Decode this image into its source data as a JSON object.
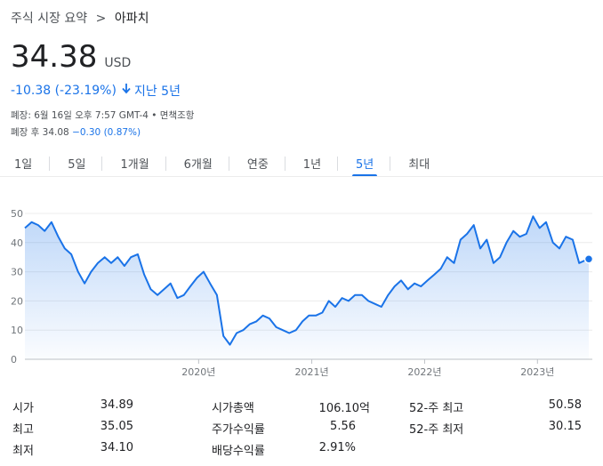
{
  "breadcrumb": {
    "root": "주식 시장 요약",
    "separator": ">",
    "current": "아파치"
  },
  "quote": {
    "price": "34.38",
    "currency": "USD",
    "change": "-10.38 (-23.19%)",
    "period": "지난 5년",
    "close_info": "폐장: 6월 16일 오후 7:57 GMT-4 • 면책조항",
    "after_hours_label": "폐장 후 34.08",
    "after_hours_change": "−0.30 (0.87%)"
  },
  "tabs": [
    {
      "label": "1일",
      "active": false
    },
    {
      "label": "5일",
      "active": false
    },
    {
      "label": "1개월",
      "active": false
    },
    {
      "label": "6개월",
      "active": false
    },
    {
      "label": "연중",
      "active": false
    },
    {
      "label": "1년",
      "active": false
    },
    {
      "label": "5년",
      "active": true
    },
    {
      "label": "최대",
      "active": false
    }
  ],
  "chart_data": {
    "type": "area",
    "ylim": [
      0,
      50
    ],
    "yticks": [
      "0",
      "10",
      "20",
      "30",
      "40",
      "50"
    ],
    "xticks": [
      "2020년",
      "2021년",
      "2022년",
      "2023년"
    ],
    "x_domain": [
      "2018-06-18",
      "2023-06-16"
    ],
    "grid": true,
    "line_color": "#1a73e8",
    "series": [
      {
        "x": [
          "2018-06-18",
          "2018-07-10",
          "2018-07-31",
          "2018-08-21",
          "2018-09-12",
          "2018-10-04",
          "2018-10-25",
          "2018-11-15",
          "2018-12-07",
          "2018-12-28",
          "2019-01-18",
          "2019-02-09",
          "2019-03-03",
          "2019-03-24",
          "2019-04-14",
          "2019-05-06",
          "2019-05-27",
          "2019-06-18",
          "2019-07-09",
          "2019-07-30",
          "2019-08-21",
          "2019-09-11",
          "2019-10-02",
          "2019-10-24",
          "2019-11-14",
          "2019-12-05",
          "2019-12-27",
          "2020-01-17",
          "2020-02-07",
          "2020-02-29",
          "2020-03-21",
          "2020-04-11",
          "2020-05-03",
          "2020-05-24",
          "2020-06-14",
          "2020-07-06",
          "2020-07-27",
          "2020-08-17",
          "2020-09-08",
          "2020-09-29",
          "2020-10-20",
          "2020-11-11",
          "2020-12-02",
          "2020-12-23",
          "2021-01-14",
          "2021-02-04",
          "2021-02-25",
          "2021-03-18",
          "2021-04-09",
          "2021-04-30",
          "2021-05-21",
          "2021-06-12",
          "2021-07-03",
          "2021-07-24",
          "2021-08-14",
          "2021-09-05",
          "2021-09-26",
          "2021-10-17",
          "2021-11-08",
          "2021-11-29",
          "2021-12-20",
          "2022-01-10",
          "2022-02-01",
          "2022-02-22",
          "2022-03-15",
          "2022-04-06",
          "2022-04-27",
          "2022-05-18",
          "2022-06-09",
          "2022-06-30",
          "2022-07-21",
          "2022-08-12",
          "2022-09-02",
          "2022-09-23",
          "2022-10-15",
          "2022-11-05",
          "2022-11-26",
          "2022-12-18",
          "2023-01-08",
          "2023-01-29",
          "2023-02-20",
          "2023-03-13",
          "2023-04-03",
          "2023-04-25",
          "2023-05-16",
          "2023-06-06",
          "2023-06-16"
        ],
        "y": [
          45,
          47,
          46,
          44,
          47,
          42,
          38,
          36,
          30,
          26,
          30,
          33,
          35,
          33,
          35,
          32,
          35,
          36,
          29,
          24,
          22,
          24,
          26,
          21,
          22,
          25,
          28,
          30,
          26,
          22,
          8,
          5,
          9,
          10,
          12,
          13,
          15,
          14,
          11,
          10,
          9,
          10,
          13,
          15,
          15,
          16,
          20,
          18,
          21,
          20,
          22,
          22,
          20,
          19,
          18,
          22,
          25,
          27,
          24,
          26,
          25,
          27,
          29,
          31,
          35,
          33,
          41,
          43,
          46,
          38,
          41,
          33,
          35,
          40,
          44,
          42,
          43,
          49,
          45,
          47,
          40,
          38,
          42,
          41,
          33,
          34,
          34.38
        ]
      }
    ]
  },
  "stats": [
    {
      "label": "시가",
      "value": "34.89"
    },
    {
      "label": "최고",
      "value": "35.05"
    },
    {
      "label": "최저",
      "value": "34.10"
    },
    {
      "label": "시가총액",
      "value": "106.10억"
    },
    {
      "label": "주가수익률",
      "value": "5.56"
    },
    {
      "label": "배당수익률",
      "value": "2.91%"
    },
    {
      "label": "52-주 최고",
      "value": "50.58"
    },
    {
      "label": "52-주 최저",
      "value": "30.15"
    }
  ]
}
